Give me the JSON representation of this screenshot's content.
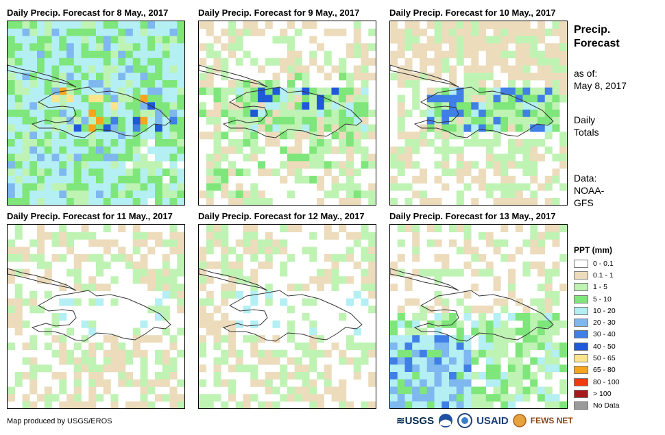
{
  "panels": [
    {
      "title": "Daily Precip. Forecast for 8 May., 2017",
      "scenario": "wet"
    },
    {
      "title": "Daily Precip. Forecast for 9 May., 2017",
      "scenario": "moderate"
    },
    {
      "title": "Daily Precip. Forecast for 10 May., 2017",
      "scenario": "moderate_dry"
    },
    {
      "title": "Daily Precip. Forecast for 11 May., 2017",
      "scenario": "dry"
    },
    {
      "title": "Daily Precip. Forecast for 12 May., 2017",
      "scenario": "dry"
    },
    {
      "title": "Daily Precip. Forecast for 13 May., 2017",
      "scenario": "south_wet"
    }
  ],
  "side": {
    "title_line1": "Precip.",
    "title_line2": "Forecast",
    "asof_line1": "as of:",
    "asof_line2": "May 8, 2017",
    "daily_line1": "Daily",
    "daily_line2": "Totals",
    "data_line1": "Data:",
    "data_line2": "NOAA-",
    "data_line3": "GFS"
  },
  "legend": {
    "title": "PPT (mm)",
    "items": [
      {
        "label": "0 - 0.1",
        "color": "#ffffff"
      },
      {
        "label": "0.1 - 1",
        "color": "#ecdcbc"
      },
      {
        "label": "1 - 5",
        "color": "#bff3b4"
      },
      {
        "label": "5 - 10",
        "color": "#7ee67a"
      },
      {
        "label": "10 - 20",
        "color": "#b4eff4"
      },
      {
        "label": "20 - 30",
        "color": "#7fb7ef"
      },
      {
        "label": "30 - 40",
        "color": "#3f7fe6"
      },
      {
        "label": "40 - 50",
        "color": "#1f58d9"
      },
      {
        "label": "50 - 65",
        "color": "#fbe58a"
      },
      {
        "label": "65 - 80",
        "color": "#f7a51d"
      },
      {
        "label": "80 - 100",
        "color": "#f23a0e"
      },
      {
        "label": "> 100",
        "color": "#a51a1a"
      },
      {
        "label": "No Data",
        "color": "#9a9a9a"
      }
    ]
  },
  "credit": "Map produced by USGS/EROS",
  "logos": {
    "usgs": "USGS",
    "usaid": "USAID",
    "fewsnet": "FEWS NET"
  }
}
